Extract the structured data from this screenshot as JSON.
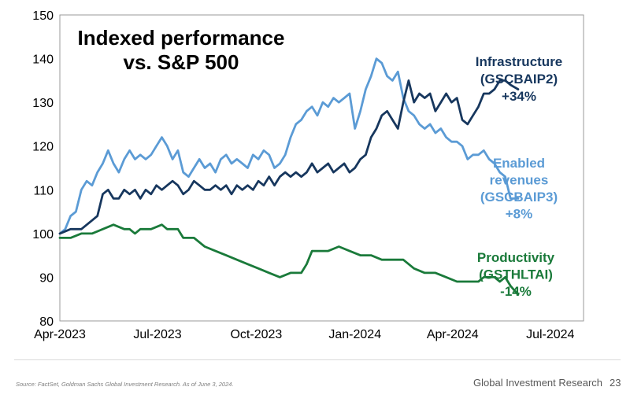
{
  "chart_data": {
    "type": "line",
    "title": [
      "Indexed performance",
      "vs. S&P 500"
    ],
    "xlabel": "",
    "ylabel": "",
    "ylim": [
      80,
      150
    ],
    "yticks": [
      80,
      90,
      100,
      110,
      120,
      130,
      140,
      150
    ],
    "xrange": [
      "2023-04-01",
      "2024-08-01"
    ],
    "xticks": [
      {
        "date": "2023-04-01",
        "label": "Apr-2023"
      },
      {
        "date": "2023-07-01",
        "label": "Jul-2023"
      },
      {
        "date": "2023-10-01",
        "label": "Oct-2023"
      },
      {
        "date": "2024-01-01",
        "label": "Jan-2024"
      },
      {
        "date": "2024-04-01",
        "label": "Apr-2024"
      },
      {
        "date": "2024-07-01",
        "label": "Jul-2024"
      }
    ],
    "grid": false,
    "series": [
      {
        "name": "Enabled revenues (GSCBAIP3)",
        "label_lines": [
          "Enabled",
          "revenues",
          "(GSCBAIP3)",
          "+8%"
        ],
        "color": "#5b9bd5",
        "points": [
          [
            "2023-04-01",
            100
          ],
          [
            "2023-04-06",
            101
          ],
          [
            "2023-04-11",
            104
          ],
          [
            "2023-04-16",
            105
          ],
          [
            "2023-04-21",
            110
          ],
          [
            "2023-04-26",
            112
          ],
          [
            "2023-05-01",
            111
          ],
          [
            "2023-05-06",
            114
          ],
          [
            "2023-05-11",
            116
          ],
          [
            "2023-05-16",
            119
          ],
          [
            "2023-05-21",
            116
          ],
          [
            "2023-05-26",
            114
          ],
          [
            "2023-05-31",
            117
          ],
          [
            "2023-06-05",
            119
          ],
          [
            "2023-06-10",
            117
          ],
          [
            "2023-06-15",
            118
          ],
          [
            "2023-06-20",
            117
          ],
          [
            "2023-06-25",
            118
          ],
          [
            "2023-06-30",
            120
          ],
          [
            "2023-07-05",
            122
          ],
          [
            "2023-07-10",
            120
          ],
          [
            "2023-07-15",
            117
          ],
          [
            "2023-07-20",
            119
          ],
          [
            "2023-07-25",
            114
          ],
          [
            "2023-07-30",
            113
          ],
          [
            "2023-08-04",
            115
          ],
          [
            "2023-08-09",
            117
          ],
          [
            "2023-08-14",
            115
          ],
          [
            "2023-08-19",
            116
          ],
          [
            "2023-08-24",
            114
          ],
          [
            "2023-08-29",
            117
          ],
          [
            "2023-09-03",
            118
          ],
          [
            "2023-09-08",
            116
          ],
          [
            "2023-09-13",
            117
          ],
          [
            "2023-09-18",
            116
          ],
          [
            "2023-09-23",
            115
          ],
          [
            "2023-09-28",
            118
          ],
          [
            "2023-10-03",
            117
          ],
          [
            "2023-10-08",
            119
          ],
          [
            "2023-10-13",
            118
          ],
          [
            "2023-10-18",
            115
          ],
          [
            "2023-10-23",
            116
          ],
          [
            "2023-10-28",
            118
          ],
          [
            "2023-11-02",
            122
          ],
          [
            "2023-11-07",
            125
          ],
          [
            "2023-11-12",
            126
          ],
          [
            "2023-11-17",
            128
          ],
          [
            "2023-11-22",
            129
          ],
          [
            "2023-11-27",
            127
          ],
          [
            "2023-12-02",
            130
          ],
          [
            "2023-12-07",
            129
          ],
          [
            "2023-12-12",
            131
          ],
          [
            "2023-12-17",
            130
          ],
          [
            "2023-12-22",
            131
          ],
          [
            "2023-12-27",
            132
          ],
          [
            "2024-01-01",
            124
          ],
          [
            "2024-01-06",
            128
          ],
          [
            "2024-01-11",
            133
          ],
          [
            "2024-01-16",
            136
          ],
          [
            "2024-01-21",
            140
          ],
          [
            "2024-01-26",
            139
          ],
          [
            "2024-01-31",
            136
          ],
          [
            "2024-02-05",
            135
          ],
          [
            "2024-02-10",
            137
          ],
          [
            "2024-02-15",
            131
          ],
          [
            "2024-02-20",
            128
          ],
          [
            "2024-02-25",
            127
          ],
          [
            "2024-03-01",
            125
          ],
          [
            "2024-03-06",
            124
          ],
          [
            "2024-03-11",
            125
          ],
          [
            "2024-03-16",
            123
          ],
          [
            "2024-03-21",
            124
          ],
          [
            "2024-03-26",
            122
          ],
          [
            "2024-03-31",
            121
          ],
          [
            "2024-04-05",
            121
          ],
          [
            "2024-04-10",
            120
          ],
          [
            "2024-04-15",
            117
          ],
          [
            "2024-04-20",
            118
          ],
          [
            "2024-04-25",
            118
          ],
          [
            "2024-04-30",
            119
          ],
          [
            "2024-05-05",
            117
          ],
          [
            "2024-05-10",
            116
          ],
          [
            "2024-05-15",
            114
          ],
          [
            "2024-05-20",
            113
          ],
          [
            "2024-05-25",
            108
          ],
          [
            "2024-06-01",
            108
          ]
        ]
      },
      {
        "name": "Infrastructure (GSCBAIP2)",
        "label_lines": [
          "Infrastructure",
          "(GSCBAIP2)",
          "+34%"
        ],
        "color": "#17375e",
        "points": [
          [
            "2023-04-01",
            100
          ],
          [
            "2023-04-11",
            101
          ],
          [
            "2023-04-21",
            101
          ],
          [
            "2023-05-01",
            103
          ],
          [
            "2023-05-06",
            104
          ],
          [
            "2023-05-11",
            109
          ],
          [
            "2023-05-16",
            110
          ],
          [
            "2023-05-21",
            108
          ],
          [
            "2023-05-26",
            108
          ],
          [
            "2023-05-31",
            110
          ],
          [
            "2023-06-05",
            109
          ],
          [
            "2023-06-10",
            110
          ],
          [
            "2023-06-15",
            108
          ],
          [
            "2023-06-20",
            110
          ],
          [
            "2023-06-25",
            109
          ],
          [
            "2023-06-30",
            111
          ],
          [
            "2023-07-05",
            110
          ],
          [
            "2023-07-10",
            111
          ],
          [
            "2023-07-15",
            112
          ],
          [
            "2023-07-20",
            111
          ],
          [
            "2023-07-25",
            109
          ],
          [
            "2023-07-30",
            110
          ],
          [
            "2023-08-04",
            112
          ],
          [
            "2023-08-09",
            111
          ],
          [
            "2023-08-14",
            110
          ],
          [
            "2023-08-19",
            110
          ],
          [
            "2023-08-24",
            111
          ],
          [
            "2023-08-29",
            110
          ],
          [
            "2023-09-03",
            111
          ],
          [
            "2023-09-08",
            109
          ],
          [
            "2023-09-13",
            111
          ],
          [
            "2023-09-18",
            110
          ],
          [
            "2023-09-23",
            111
          ],
          [
            "2023-09-28",
            110
          ],
          [
            "2023-10-03",
            112
          ],
          [
            "2023-10-08",
            111
          ],
          [
            "2023-10-13",
            113
          ],
          [
            "2023-10-18",
            111
          ],
          [
            "2023-10-23",
            113
          ],
          [
            "2023-10-28",
            114
          ],
          [
            "2023-11-02",
            113
          ],
          [
            "2023-11-07",
            114
          ],
          [
            "2023-11-12",
            113
          ],
          [
            "2023-11-17",
            114
          ],
          [
            "2023-11-22",
            116
          ],
          [
            "2023-11-27",
            114
          ],
          [
            "2023-12-02",
            115
          ],
          [
            "2023-12-07",
            116
          ],
          [
            "2023-12-12",
            114
          ],
          [
            "2023-12-17",
            115
          ],
          [
            "2023-12-22",
            116
          ],
          [
            "2023-12-27",
            114
          ],
          [
            "2024-01-01",
            115
          ],
          [
            "2024-01-06",
            117
          ],
          [
            "2024-01-11",
            118
          ],
          [
            "2024-01-16",
            122
          ],
          [
            "2024-01-21",
            124
          ],
          [
            "2024-01-26",
            127
          ],
          [
            "2024-01-31",
            128
          ],
          [
            "2024-02-05",
            126
          ],
          [
            "2024-02-10",
            124
          ],
          [
            "2024-02-15",
            130
          ],
          [
            "2024-02-20",
            135
          ],
          [
            "2024-02-25",
            130
          ],
          [
            "2024-03-01",
            132
          ],
          [
            "2024-03-06",
            131
          ],
          [
            "2024-03-11",
            132
          ],
          [
            "2024-03-16",
            128
          ],
          [
            "2024-03-21",
            130
          ],
          [
            "2024-03-26",
            132
          ],
          [
            "2024-03-31",
            130
          ],
          [
            "2024-04-05",
            131
          ],
          [
            "2024-04-10",
            126
          ],
          [
            "2024-04-15",
            125
          ],
          [
            "2024-04-20",
            127
          ],
          [
            "2024-04-25",
            129
          ],
          [
            "2024-04-30",
            132
          ],
          [
            "2024-05-05",
            132
          ],
          [
            "2024-05-10",
            133
          ],
          [
            "2024-05-15",
            135
          ],
          [
            "2024-05-20",
            135
          ],
          [
            "2024-05-25",
            134
          ],
          [
            "2024-06-01",
            133
          ]
        ]
      },
      {
        "name": "Productivity (GSTHLTAI)",
        "label_lines": [
          "Productivity",
          "(GSTHLTAI)",
          "-14%"
        ],
        "color": "#1a7a3a",
        "points": [
          [
            "2023-04-01",
            99
          ],
          [
            "2023-04-11",
            99
          ],
          [
            "2023-04-21",
            100
          ],
          [
            "2023-05-01",
            100
          ],
          [
            "2023-05-11",
            101
          ],
          [
            "2023-05-21",
            102
          ],
          [
            "2023-05-31",
            101
          ],
          [
            "2023-06-05",
            101
          ],
          [
            "2023-06-10",
            100
          ],
          [
            "2023-06-15",
            101
          ],
          [
            "2023-06-25",
            101
          ],
          [
            "2023-07-05",
            102
          ],
          [
            "2023-07-10",
            101
          ],
          [
            "2023-07-20",
            101
          ],
          [
            "2023-07-25",
            99
          ],
          [
            "2023-08-04",
            99
          ],
          [
            "2023-08-14",
            97
          ],
          [
            "2023-08-24",
            96
          ],
          [
            "2023-09-03",
            95
          ],
          [
            "2023-09-13",
            94
          ],
          [
            "2023-09-23",
            93
          ],
          [
            "2023-10-03",
            92
          ],
          [
            "2023-10-13",
            91
          ],
          [
            "2023-10-23",
            90
          ],
          [
            "2023-11-02",
            91
          ],
          [
            "2023-11-12",
            91
          ],
          [
            "2023-11-17",
            93
          ],
          [
            "2023-11-22",
            96
          ],
          [
            "2023-11-27",
            96
          ],
          [
            "2023-12-07",
            96
          ],
          [
            "2023-12-17",
            97
          ],
          [
            "2023-12-27",
            96
          ],
          [
            "2024-01-06",
            95
          ],
          [
            "2024-01-16",
            95
          ],
          [
            "2024-01-26",
            94
          ],
          [
            "2024-02-05",
            94
          ],
          [
            "2024-02-15",
            94
          ],
          [
            "2024-02-25",
            92
          ],
          [
            "2024-03-06",
            91
          ],
          [
            "2024-03-16",
            91
          ],
          [
            "2024-03-26",
            90
          ],
          [
            "2024-04-05",
            89
          ],
          [
            "2024-04-15",
            89
          ],
          [
            "2024-04-25",
            89
          ],
          [
            "2024-04-30",
            90
          ],
          [
            "2024-05-10",
            90
          ],
          [
            "2024-05-15",
            89
          ],
          [
            "2024-05-20",
            90
          ],
          [
            "2024-05-25",
            88
          ],
          [
            "2024-06-01",
            86
          ]
        ]
      }
    ]
  },
  "footer": {
    "source": "Source: FactSet, Goldman Sachs Global Investment Research. As of June 3, 2024.",
    "org": "Global Investment Research",
    "page": "23"
  }
}
